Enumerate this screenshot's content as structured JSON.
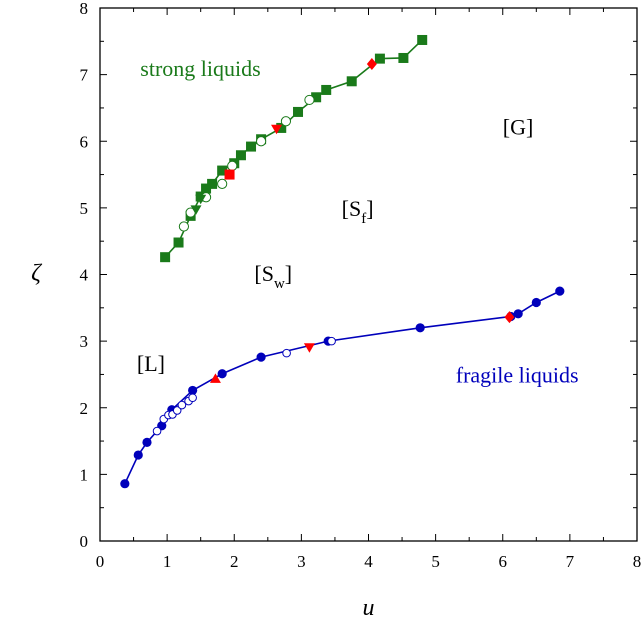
{
  "chart_data": {
    "type": "scatter",
    "xlabel": "u",
    "ylabel": "ζ",
    "xlim": [
      0,
      8
    ],
    "ylim": [
      0,
      8
    ],
    "xticks": [
      "0",
      "1",
      "2",
      "3",
      "4",
      "5",
      "6",
      "7",
      "8"
    ],
    "yticks": [
      "0",
      "1",
      "2",
      "3",
      "4",
      "5",
      "6",
      "7",
      "8"
    ],
    "grid": false,
    "series": [
      {
        "name": "strong liquids",
        "color": "#1a7a1a",
        "line": true,
        "marker": "square",
        "points": [
          [
            0.97,
            4.26
          ],
          [
            1.17,
            4.48
          ],
          [
            1.35,
            4.88
          ],
          [
            1.5,
            5.17
          ],
          [
            1.58,
            5.29
          ],
          [
            1.67,
            5.36
          ],
          [
            1.82,
            5.56
          ],
          [
            2.0,
            5.67
          ],
          [
            2.1,
            5.79
          ],
          [
            2.25,
            5.92
          ],
          [
            2.4,
            6.03
          ],
          [
            2.7,
            6.2
          ],
          [
            2.95,
            6.44
          ],
          [
            3.22,
            6.66
          ],
          [
            3.37,
            6.77
          ],
          [
            3.75,
            6.9
          ],
          [
            4.17,
            7.24
          ],
          [
            4.52,
            7.25
          ],
          [
            4.8,
            7.52
          ]
        ]
      },
      {
        "name": "strong-open-circles",
        "color": "#1a7a1a",
        "line": false,
        "marker": "circle-open",
        "points": [
          [
            1.25,
            4.72
          ],
          [
            1.35,
            4.93
          ],
          [
            1.58,
            5.16
          ],
          [
            1.82,
            5.36
          ],
          [
            1.97,
            5.63
          ],
          [
            2.4,
            6.0
          ],
          [
            2.77,
            6.3
          ],
          [
            3.12,
            6.62
          ]
        ]
      },
      {
        "name": "strong-filled-triangles",
        "color": "#1a7a1a",
        "line": false,
        "marker": "triangle-down",
        "points": [
          [
            1.43,
            4.97
          ],
          [
            1.5,
            5.13
          ]
        ]
      },
      {
        "name": "strong-red-markers",
        "color": "#ff0000",
        "line": false,
        "marker": "mixed",
        "points": [
          [
            1.93,
            5.5,
            "square"
          ],
          [
            2.63,
            6.18,
            "triangle-down"
          ],
          [
            4.05,
            7.16,
            "diamond"
          ]
        ]
      },
      {
        "name": "fragile liquids",
        "color": "#0000bb",
        "line": true,
        "marker": "circle",
        "points": [
          [
            0.37,
            0.86
          ],
          [
            0.57,
            1.29
          ],
          [
            0.7,
            1.48
          ],
          [
            0.92,
            1.73
          ],
          [
            1.07,
            1.97
          ],
          [
            1.38,
            2.26
          ],
          [
            1.82,
            2.51
          ],
          [
            2.4,
            2.76
          ],
          [
            3.4,
            3.0
          ],
          [
            4.77,
            3.2
          ],
          [
            6.12,
            3.37
          ],
          [
            6.23,
            3.41
          ],
          [
            6.5,
            3.58
          ],
          [
            6.85,
            3.75
          ]
        ]
      },
      {
        "name": "fragile-open-markers",
        "color": "#0000bb",
        "line": false,
        "marker": "open",
        "points": [
          [
            0.85,
            1.65
          ],
          [
            0.95,
            1.83
          ],
          [
            1.02,
            1.89
          ],
          [
            1.08,
            1.9
          ],
          [
            1.15,
            1.96
          ],
          [
            1.22,
            2.04
          ],
          [
            1.32,
            2.1
          ],
          [
            1.38,
            2.15
          ],
          [
            2.78,
            2.82
          ],
          [
            3.45,
            3.0
          ]
        ]
      },
      {
        "name": "fragile-red-markers",
        "color": "#ff0000",
        "line": false,
        "marker": "mixed",
        "points": [
          [
            1.72,
            2.44,
            "triangle-up"
          ],
          [
            3.12,
            2.9,
            "triangle-down"
          ],
          [
            6.1,
            3.36,
            "diamond"
          ]
        ]
      }
    ],
    "annotations": [
      {
        "text": "strong liquids",
        "x": 0.6,
        "y": 6.98,
        "color": "#1a7a1a"
      },
      {
        "text": "fragile liquids",
        "x": 5.3,
        "y": 2.38,
        "color": "#0000bb"
      },
      {
        "text": "[G]",
        "x": 6.0,
        "y": 6.1,
        "color": "#000000"
      },
      {
        "text": "[S",
        "sub": "f",
        "close": "]",
        "x": 3.6,
        "y": 4.88,
        "color": "#000000"
      },
      {
        "text": "[S",
        "sub": "w",
        "close": "]",
        "x": 2.3,
        "y": 3.9,
        "color": "#000000"
      },
      {
        "text": "[L]",
        "x": 0.55,
        "y": 2.55,
        "color": "#000000"
      }
    ]
  }
}
